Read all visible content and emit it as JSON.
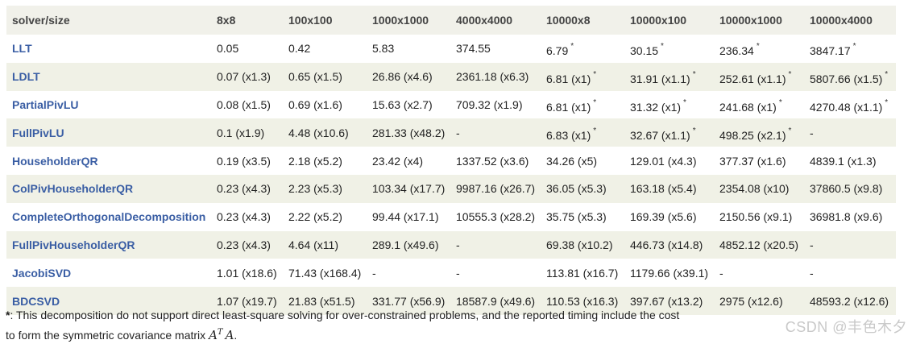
{
  "table": {
    "headers": [
      "solver/size",
      "8x8",
      "100x100",
      "1000x1000",
      "4000x4000",
      "10000x8",
      "10000x100",
      "10000x1000",
      "10000x4000"
    ],
    "rows": [
      {
        "solver": "LLT",
        "cells": [
          {
            "v": "0.05"
          },
          {
            "v": "0.42"
          },
          {
            "v": "5.83"
          },
          {
            "v": "374.55"
          },
          {
            "v": "6.79",
            "star": true
          },
          {
            "v": "30.15",
            "star": true
          },
          {
            "v": "236.34",
            "star": true
          },
          {
            "v": "3847.17",
            "star": true
          }
        ]
      },
      {
        "solver": "LDLT",
        "cells": [
          {
            "v": "0.07 (x1.3)"
          },
          {
            "v": "0.65 (x1.5)"
          },
          {
            "v": "26.86 (x4.6)"
          },
          {
            "v": "2361.18 (x6.3)"
          },
          {
            "v": "6.81 (x1)",
            "star": true
          },
          {
            "v": "31.91 (x1.1)",
            "star": true
          },
          {
            "v": "252.61 (x1.1)",
            "star": true
          },
          {
            "v": "5807.66 (x1.5)",
            "star": true
          }
        ]
      },
      {
        "solver": "PartialPivLU",
        "cells": [
          {
            "v": "0.08 (x1.5)"
          },
          {
            "v": "0.69 (x1.6)"
          },
          {
            "v": "15.63 (x2.7)"
          },
          {
            "v": "709.32 (x1.9)"
          },
          {
            "v": "6.81 (x1)",
            "star": true
          },
          {
            "v": "31.32 (x1)",
            "star": true
          },
          {
            "v": "241.68 (x1)",
            "star": true
          },
          {
            "v": "4270.48 (x1.1)",
            "star": true
          }
        ]
      },
      {
        "solver": "FullPivLU",
        "cells": [
          {
            "v": "0.1 (x1.9)"
          },
          {
            "v": "4.48 (x10.6)"
          },
          {
            "v": "281.33 (x48.2)"
          },
          {
            "v": "-"
          },
          {
            "v": "6.83 (x1)",
            "star": true
          },
          {
            "v": "32.67 (x1.1)",
            "star": true
          },
          {
            "v": "498.25 (x2.1)",
            "star": true
          },
          {
            "v": "-"
          }
        ]
      },
      {
        "solver": "HouseholderQR",
        "cells": [
          {
            "v": "0.19 (x3.5)"
          },
          {
            "v": "2.18 (x5.2)"
          },
          {
            "v": "23.42 (x4)"
          },
          {
            "v": "1337.52 (x3.6)"
          },
          {
            "v": "34.26 (x5)"
          },
          {
            "v": "129.01 (x4.3)"
          },
          {
            "v": "377.37 (x1.6)"
          },
          {
            "v": "4839.1 (x1.3)"
          }
        ]
      },
      {
        "solver": "ColPivHouseholderQR",
        "cells": [
          {
            "v": "0.23 (x4.3)"
          },
          {
            "v": "2.23 (x5.3)"
          },
          {
            "v": "103.34 (x17.7)"
          },
          {
            "v": "9987.16 (x26.7)"
          },
          {
            "v": "36.05 (x5.3)"
          },
          {
            "v": "163.18 (x5.4)"
          },
          {
            "v": "2354.08 (x10)"
          },
          {
            "v": "37860.5 (x9.8)"
          }
        ]
      },
      {
        "solver": "CompleteOrthogonalDecomposition",
        "cells": [
          {
            "v": "0.23 (x4.3)"
          },
          {
            "v": "2.22 (x5.2)"
          },
          {
            "v": "99.44 (x17.1)"
          },
          {
            "v": "10555.3 (x28.2)"
          },
          {
            "v": "35.75 (x5.3)"
          },
          {
            "v": "169.39 (x5.6)"
          },
          {
            "v": "2150.56 (x9.1)"
          },
          {
            "v": "36981.8 (x9.6)"
          }
        ]
      },
      {
        "solver": "FullPivHouseholderQR",
        "cells": [
          {
            "v": "0.23 (x4.3)"
          },
          {
            "v": "4.64 (x11)"
          },
          {
            "v": "289.1 (x49.6)"
          },
          {
            "v": "-"
          },
          {
            "v": "69.38 (x10.2)"
          },
          {
            "v": "446.73 (x14.8)"
          },
          {
            "v": "4852.12 (x20.5)"
          },
          {
            "v": "-"
          }
        ]
      },
      {
        "solver": "JacobiSVD",
        "cells": [
          {
            "v": "1.01 (x18.6)"
          },
          {
            "v": "71.43 (x168.4)"
          },
          {
            "v": "-"
          },
          {
            "v": "-"
          },
          {
            "v": "113.81 (x16.7)"
          },
          {
            "v": "1179.66 (x39.1)"
          },
          {
            "v": "-"
          },
          {
            "v": "-"
          }
        ]
      },
      {
        "solver": "BDCSVD",
        "cells": [
          {
            "v": "1.07 (x19.7)"
          },
          {
            "v": "21.83 (x51.5)"
          },
          {
            "v": "331.77 (x56.9)"
          },
          {
            "v": "18587.9 (x49.6)"
          },
          {
            "v": "110.53 (x16.3)"
          },
          {
            "v": "397.67 (x13.2)"
          },
          {
            "v": "2975 (x12.6)"
          },
          {
            "v": "48593.2 (x12.6)"
          }
        ]
      }
    ],
    "star_symbol": "*"
  },
  "footnote": {
    "mark": "*",
    "line1": ": This decomposition do not support direct least-square solving for over-constrained problems, and the reported timing include the cost",
    "line2": "to form the symmetric covariance matrix ",
    "math_base": "A",
    "math_sup": "T",
    "math_tail": "A",
    "line2_end": "."
  },
  "watermark": "CSDN @丰色木夕",
  "colors": {
    "header_bg": "#f1f1ea",
    "stripe_bg": "#f0f1e6",
    "solver_link": "#3a5ea4",
    "text": "#222222"
  }
}
